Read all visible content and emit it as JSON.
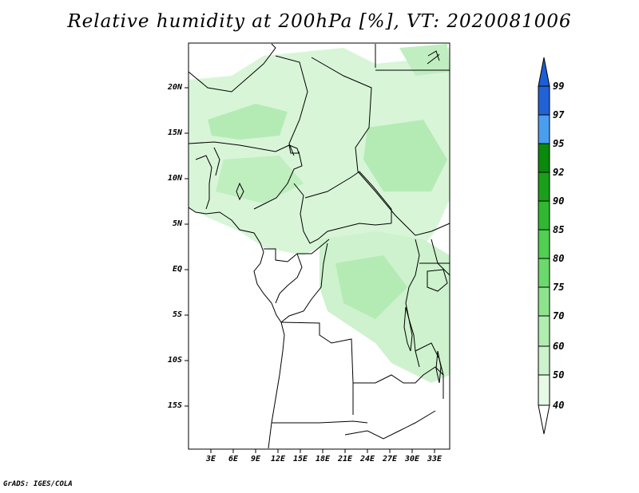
{
  "title": "Relative humidity at 200hPa [%], VT: 2020081006",
  "footer": "GrADS: IGES/COLA",
  "lat_labels": [
    "20N",
    "15N",
    "10N",
    "5N",
    "EQ",
    "5S",
    "10S",
    "15S"
  ],
  "lon_labels": [
    "3E",
    "6E",
    "9E",
    "12E",
    "15E",
    "18E",
    "21E",
    "24E",
    "27E",
    "30E",
    "33E"
  ],
  "colorbar": {
    "labels": [
      "99",
      "97",
      "95",
      "92",
      "90",
      "85",
      "80",
      "75",
      "70",
      "60",
      "50",
      "40"
    ],
    "colors": {
      "c99": "#1a5fd6",
      "c97": "#2f7fe6",
      "c95": "#4a9ef0",
      "c92": "#0a8a0a",
      "c90": "#18a018",
      "c85": "#30b830",
      "c80": "#50cf50",
      "c75": "#74dc74",
      "c70": "#98e898",
      "c60": "#b8f0b8",
      "c50": "#d6f7d6",
      "c40": "#eefcee"
    }
  },
  "colors": {
    "land_boundary": "#000000",
    "humid_light": "#e4f9e4",
    "humid_mid": "#c6f1c6",
    "humid_dark": "#a7e7a7"
  }
}
